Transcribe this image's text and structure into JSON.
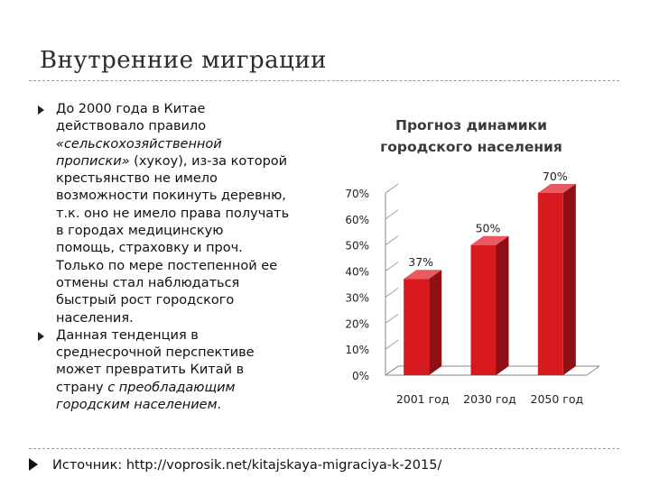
{
  "slide": {
    "title": "Внутренние миграции"
  },
  "bullets": [
    {
      "lines": [
        [
          {
            "t": "До 2000 года в Китае"
          }
        ],
        [
          {
            "t": "действовало правило"
          }
        ],
        [
          {
            "t": "«сельскохозяйственной",
            "i": true
          }
        ],
        [
          {
            "t": "прописки»",
            "i": true
          },
          {
            "t": " (хукоу), из-за которой"
          }
        ],
        [
          {
            "t": "крестьянство не имело"
          }
        ],
        [
          {
            "t": "возможности покинуть деревню,"
          }
        ],
        [
          {
            "t": "т.к. оно не имело права получать"
          }
        ],
        [
          {
            "t": "в городах медицинскую"
          }
        ],
        [
          {
            "t": "помощь, страховку и проч."
          }
        ],
        [
          {
            "t": "Только по мере постепенной ее"
          }
        ],
        [
          {
            "t": "отмены стал наблюдаться"
          }
        ],
        [
          {
            "t": "быстрый рост городского"
          }
        ],
        [
          {
            "t": "населения."
          }
        ]
      ]
    },
    {
      "lines": [
        [
          {
            "t": "Данная тенденция в"
          }
        ],
        [
          {
            "t": "среднесрочной перспективе"
          }
        ],
        [
          {
            "t": "может превратить Китай в"
          }
        ],
        [
          {
            "t": "страну "
          },
          {
            "t": "с преобладающим",
            "i": true
          }
        ],
        [
          {
            "t": "городским населением",
            "i": true
          },
          {
            "t": "."
          }
        ]
      ]
    }
  ],
  "source": {
    "text": "Источник: http://voprosik.net/kitajskaya-migraciya-k-2015/"
  },
  "colors": {
    "bar_front": "#d71920",
    "bar_side": "#8e0f14",
    "bar_top": "#e85a5f",
    "axis": "#8a8a8a"
  },
  "chart_data": {
    "type": "bar",
    "title": "Прогноз динамики городского населения",
    "title_lines": [
      "Прогноз динамики",
      "городского населения"
    ],
    "categories": [
      "2001 год",
      "2030 год",
      "2050 год"
    ],
    "values": [
      37,
      50,
      70
    ],
    "data_labels": [
      "37%",
      "50%",
      "70%"
    ],
    "ylim": [
      0,
      70
    ],
    "yticks": [
      0,
      10,
      20,
      30,
      40,
      50,
      60,
      70
    ],
    "ytick_labels": [
      "0%",
      "10%",
      "20%",
      "30%",
      "40%",
      "50%",
      "60%",
      "70%"
    ],
    "grid": false,
    "legend": "none",
    "style": "3d"
  }
}
